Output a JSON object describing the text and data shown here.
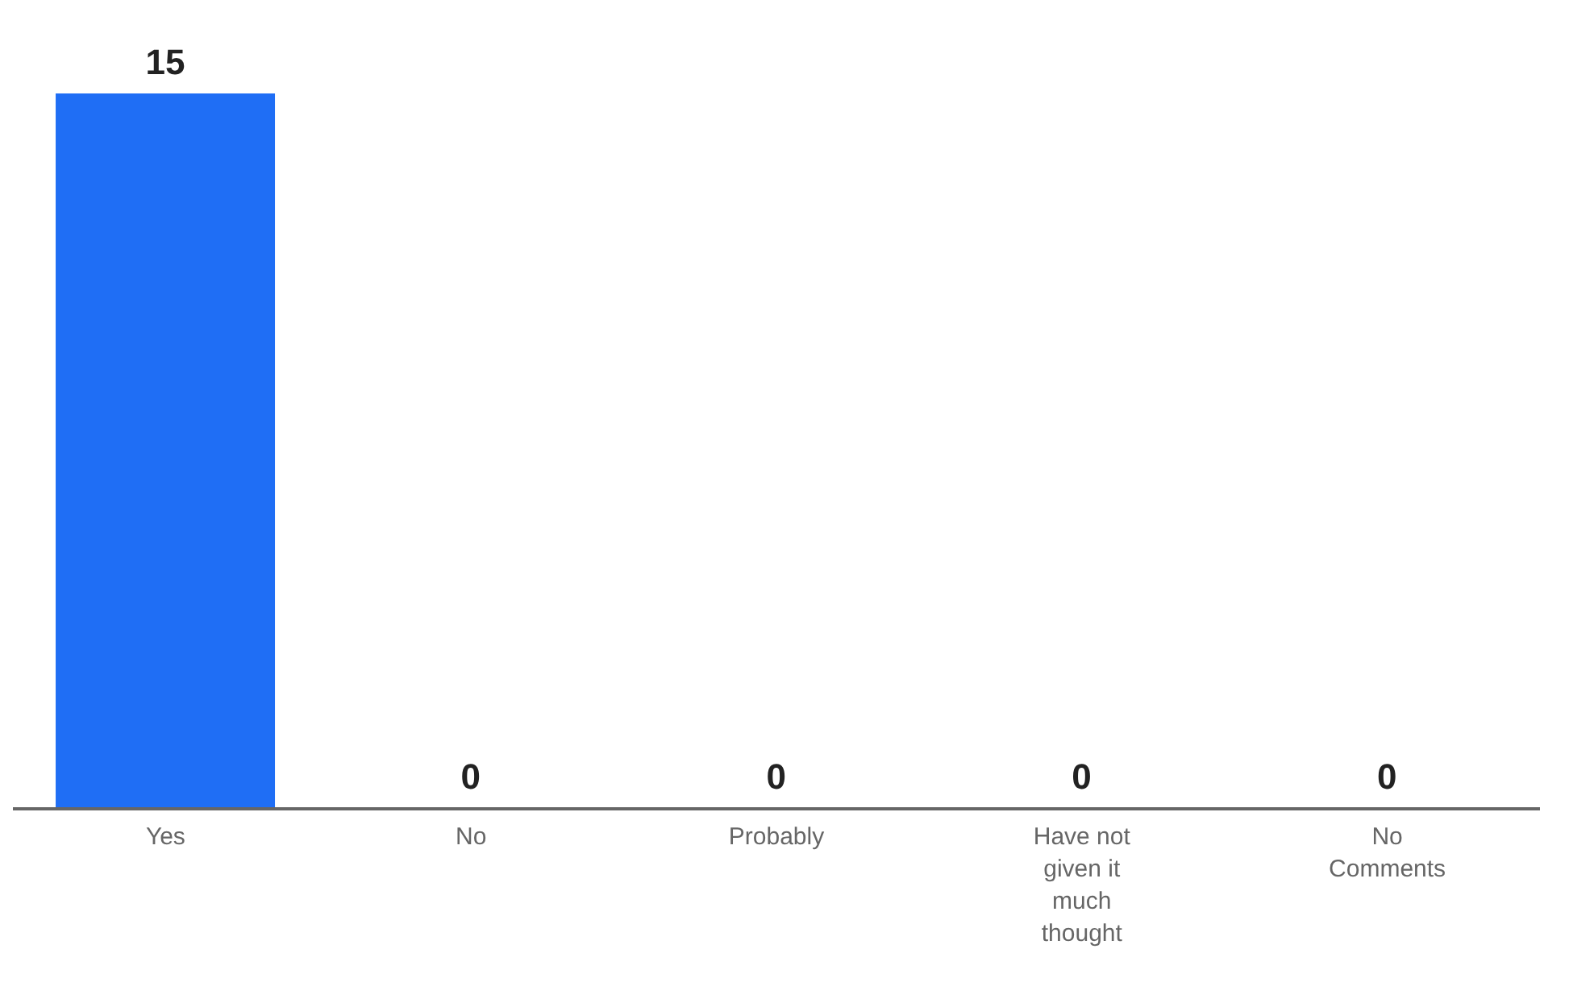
{
  "chart_data": {
    "type": "bar",
    "categories": [
      "Yes",
      "No",
      "Probably",
      "Have not given it much thought",
      "No Comments"
    ],
    "values": [
      15,
      0,
      0,
      0,
      0
    ],
    "color": "#1f6ef5",
    "data_labels": true
  }
}
